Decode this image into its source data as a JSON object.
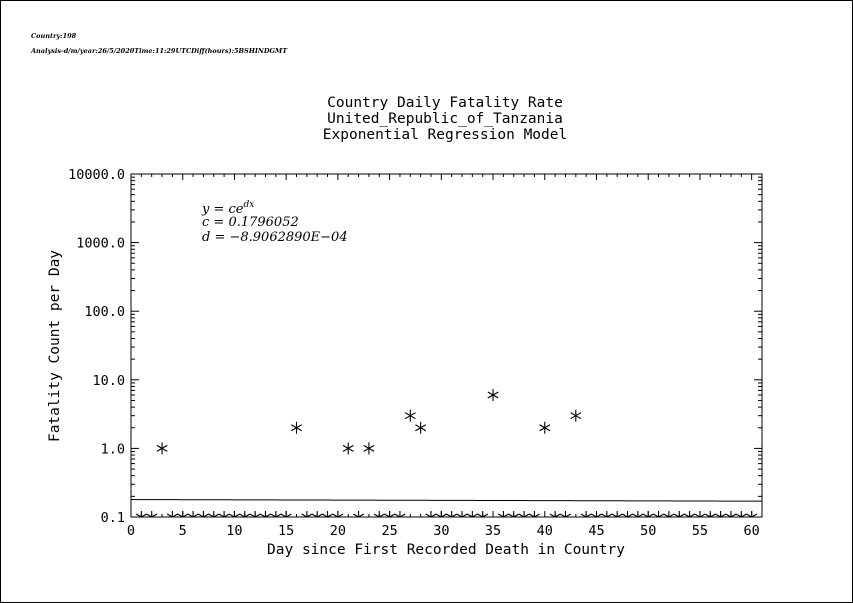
{
  "header": {
    "country_line": "Country:198",
    "analysis_line": "Analysis-d/m/year:26/5/2020Time:11:29UTCDiff(hours):5BSHINDGMT"
  },
  "chart_data": {
    "type": "scatter",
    "title_lines": [
      "Country Daily Fatality Rate",
      "United_Republic_of_Tanzania",
      "Exponential Regression Model"
    ],
    "xlabel": "Day since First Recorded Death in Country",
    "ylabel": "Fatality Count per Day",
    "xlim": [
      0,
      61
    ],
    "ylim": [
      0.1,
      10000
    ],
    "yscale": "log",
    "x_ticks": [
      0,
      5,
      10,
      15,
      20,
      25,
      30,
      35,
      40,
      45,
      50,
      55,
      60
    ],
    "x_tick_labels": [
      "0",
      "5",
      "10",
      "15",
      "20",
      "25",
      "30",
      "35",
      "40",
      "45",
      "50",
      "55",
      "60"
    ],
    "y_ticks": [
      0.1,
      1,
      10,
      100,
      1000,
      10000
    ],
    "y_tick_labels": [
      "0.1",
      "1.0",
      "10.0",
      "100.0",
      "1000.0",
      "10000.0"
    ],
    "grid": false,
    "marker": "asterisk",
    "points": [
      {
        "x": 3,
        "y": 1
      },
      {
        "x": 16,
        "y": 2
      },
      {
        "x": 21,
        "y": 1
      },
      {
        "x": 23,
        "y": 1
      },
      {
        "x": 27,
        "y": 3
      },
      {
        "x": 28,
        "y": 2
      },
      {
        "x": 35,
        "y": 6
      },
      {
        "x": 40,
        "y": 2
      },
      {
        "x": 43,
        "y": 3
      }
    ],
    "zero_days": [
      1,
      2,
      4,
      5,
      6,
      7,
      8,
      9,
      10,
      11,
      12,
      13,
      14,
      15,
      17,
      18,
      19,
      20,
      22,
      24,
      25,
      26,
      29,
      30,
      31,
      32,
      33,
      34,
      36,
      37,
      38,
      39,
      41,
      42,
      44,
      45,
      46,
      47,
      48,
      49,
      50,
      51,
      52,
      53,
      54,
      55,
      56,
      57,
      58,
      59,
      60
    ],
    "model": {
      "c": 0.1796052,
      "d": -0.0008906289,
      "equation_main": "y = ce",
      "equation_sup": "dx",
      "c_label": "c = 0.1796052",
      "d_label": "d = −8.9062890E−04"
    }
  }
}
